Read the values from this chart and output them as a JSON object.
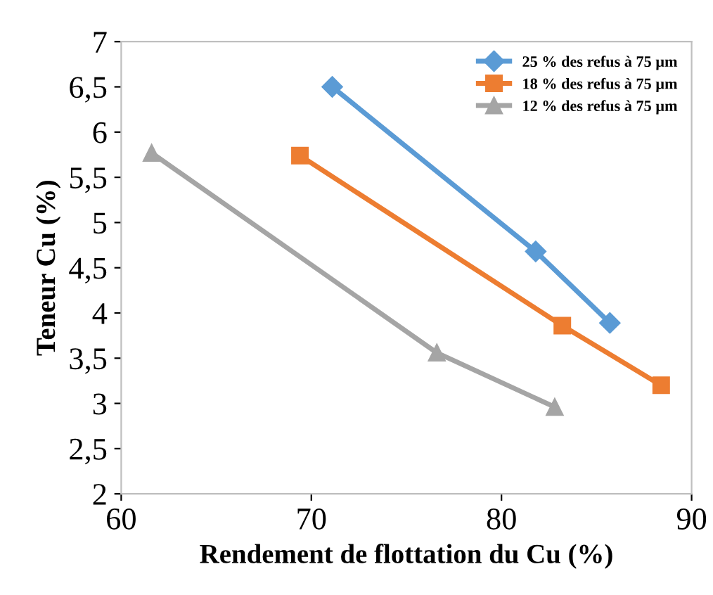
{
  "chart_data": {
    "type": "line",
    "xlabel": "Rendement de flottation du Cu (%)",
    "ylabel": "Teneur Cu (%)",
    "xlim": [
      60,
      90
    ],
    "xticks": [
      60,
      70,
      80,
      90
    ],
    "ylim": [
      2,
      7
    ],
    "yticks": [
      2,
      {
        "value": 2.5,
        "label": "2,5"
      },
      3,
      {
        "value": 3.5,
        "label": "3,5"
      },
      4,
      {
        "value": 4.5,
        "label": "4,5"
      },
      5,
      {
        "value": 5.5,
        "label": "5,5"
      },
      6,
      {
        "value": 6.5,
        "label": "6,5"
      },
      7
    ],
    "grid": false,
    "legend": "top right",
    "series": [
      {
        "name": "25 % des refus à 75 µm",
        "color": "#5b9bd5",
        "marker": "diamond",
        "x": [
          71.1,
          81.8,
          85.7
        ],
        "values": [
          6.5,
          4.68,
          3.89
        ]
      },
      {
        "name": "18 % des refus à 75 µm",
        "color": "#ed7d31",
        "marker": "square",
        "x": [
          69.4,
          83.2,
          88.4
        ],
        "values": [
          5.74,
          3.86,
          3.2
        ]
      },
      {
        "name": "12 % des refus à 75 µm",
        "color": "#a5a5a5",
        "marker": "triangle",
        "x": [
          61.6,
          76.6,
          82.8
        ],
        "values": [
          5.77,
          3.56,
          2.96
        ]
      }
    ]
  }
}
